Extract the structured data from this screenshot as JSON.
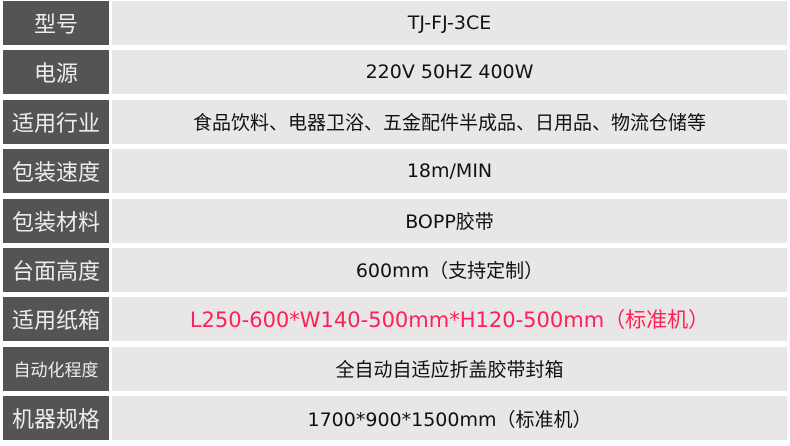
{
  "colors": {
    "label_bg": "#545454",
    "value_bg": "#e8e6e7",
    "highlight": "#ff1f5a"
  },
  "rows": [
    {
      "label": "型号",
      "value": "TJ-FJ-3CE"
    },
    {
      "label": "电源",
      "value": "220V  50HZ  400W"
    },
    {
      "label": "适用行业",
      "value": "食品饮料、电器卫浴、五金配件半成品、日用品、物流仓储等"
    },
    {
      "label": "包装速度",
      "value": "18m/MIN"
    },
    {
      "label": "包装材料",
      "value": "BOPP胶带"
    },
    {
      "label": "台面高度",
      "value": "600mm（支持定制）"
    },
    {
      "label": "适用纸箱",
      "value": "L250-600*W140-500mm*H120-500mm（标准机）",
      "highlight": true
    },
    {
      "label": "自动化程度",
      "value": "全自动自适应折盖胶带封箱"
    },
    {
      "label": "机器规格",
      "value": "1700*900*1500mm（标准机）"
    }
  ]
}
